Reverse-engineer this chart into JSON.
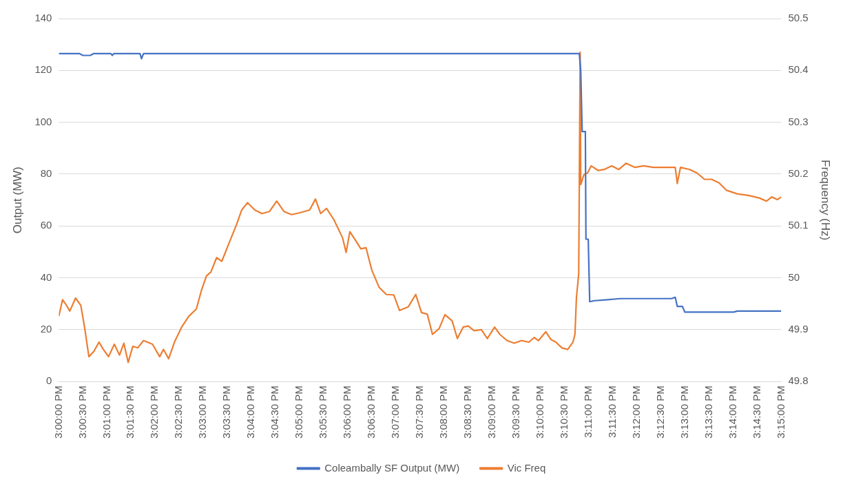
{
  "chart_data": {
    "type": "line",
    "ylabel": "Output (MW)",
    "y2label": "Frequency (Hz)",
    "xlim": [
      15,
      15.25
    ],
    "xticks": [
      {
        "value": 15,
        "label": "3:00:00 PM"
      },
      {
        "value": 15.008333,
        "label": "3:00:30 PM"
      },
      {
        "value": 15.016667,
        "label": "3:01:00 PM"
      },
      {
        "value": 15.025,
        "label": "3:01:30 PM"
      },
      {
        "value": 15.033333,
        "label": "3:02:00 PM"
      },
      {
        "value": 15.041667,
        "label": "3:02:30 PM"
      },
      {
        "value": 15.05,
        "label": "3:03:00 PM"
      },
      {
        "value": 15.058333,
        "label": "3:03:30 PM"
      },
      {
        "value": 15.066667,
        "label": "3:04:00 PM"
      },
      {
        "value": 15.075,
        "label": "3:04:30 PM"
      },
      {
        "value": 15.083333,
        "label": "3:05:00 PM"
      },
      {
        "value": 15.091667,
        "label": "3:05:30 PM"
      },
      {
        "value": 15.1,
        "label": "3:06:00 PM"
      },
      {
        "value": 15.108333,
        "label": "3:06:30 PM"
      },
      {
        "value": 15.116667,
        "label": "3:07:00 PM"
      },
      {
        "value": 15.125,
        "label": "3:07:30 PM"
      },
      {
        "value": 15.133333,
        "label": "3:08:00 PM"
      },
      {
        "value": 15.141667,
        "label": "3:08:30 PM"
      },
      {
        "value": 15.15,
        "label": "3:09:00 PM"
      },
      {
        "value": 15.158333,
        "label": "3:09:30 PM"
      },
      {
        "value": 15.166667,
        "label": "3:10:00 PM"
      },
      {
        "value": 15.175,
        "label": "3:10:30 PM"
      },
      {
        "value": 15.183333,
        "label": "3:11:00 PM"
      },
      {
        "value": 15.191667,
        "label": "3:11:30 PM"
      },
      {
        "value": 15.2,
        "label": "3:12:00 PM"
      },
      {
        "value": 15.208333,
        "label": "3:12:30 PM"
      },
      {
        "value": 15.216667,
        "label": "3:13:00 PM"
      },
      {
        "value": 15.225,
        "label": "3:13:30 PM"
      },
      {
        "value": 15.233333,
        "label": "3:14:00 PM"
      },
      {
        "value": 15.241667,
        "label": "3:14:30 PM"
      },
      {
        "value": 15.25,
        "label": "3:15:00 PM"
      }
    ],
    "ylim": [
      0,
      140
    ],
    "yticks": [
      0,
      20,
      40,
      60,
      80,
      100,
      120,
      140
    ],
    "y2lim": [
      49.8,
      50.5
    ],
    "y2ticks": [
      49.8,
      49.9,
      50,
      50.1,
      50.2,
      50.3,
      50.4,
      50.5
    ],
    "grid": "y",
    "legend": "bottom",
    "series": [
      {
        "name": "Coleambally SF Output (MW)",
        "color": "#4472c4",
        "x": [
          15,
          15.0071,
          15.0083,
          15.0109,
          15.0121,
          15.018,
          15.0185,
          15.019,
          15.0281,
          15.0286,
          15.0293,
          15.1801,
          15.1806,
          15.1811,
          15.1822,
          15.1824,
          15.1832,
          15.1837,
          15.1854,
          15.1892,
          15.1943,
          15.212,
          15.2133,
          15.214,
          15.2158,
          15.2166,
          15.2335,
          15.2348,
          15.25
        ],
        "values": [
          126.5,
          126.5,
          125.8,
          125.8,
          126.5,
          126.5,
          125.8,
          126.5,
          126.5,
          124.5,
          126.5,
          126.5,
          120,
          96.4,
          96.4,
          54.9,
          54.9,
          30.8,
          31.2,
          31.5,
          32,
          32,
          32.5,
          29,
          29,
          26.8,
          26.8,
          27.2,
          27.2
        ]
      },
      {
        "name": "Vic Freq",
        "color": "#ed7d31",
        "axis": "y2",
        "x": [
          15,
          15.0013,
          15.0023,
          15.0038,
          15.0058,
          15.0076,
          15.0089,
          15.0104,
          15.0121,
          15.0139,
          15.0154,
          15.0172,
          15.0192,
          15.021,
          15.0225,
          15.024,
          15.0256,
          15.0273,
          15.0293,
          15.0324,
          15.0349,
          15.0362,
          15.038,
          15.04,
          15.0425,
          15.045,
          15.0476,
          15.0493,
          15.0511,
          15.0526,
          15.0546,
          15.0564,
          15.0589,
          15.0615,
          15.0633,
          15.0653,
          15.0678,
          15.0703,
          15.0729,
          15.0754,
          15.0779,
          15.0805,
          15.083,
          15.0868,
          15.0888,
          15.0906,
          15.0926,
          15.0951,
          15.0982,
          15.0994,
          15.1007,
          15.1027,
          15.1045,
          15.1063,
          15.1083,
          15.1108,
          15.1133,
          15.1159,
          15.1179,
          15.1209,
          15.1235,
          15.1255,
          15.1275,
          15.1293,
          15.1316,
          15.1336,
          15.1361,
          15.1379,
          15.1399,
          15.1417,
          15.1437,
          15.1462,
          15.1483,
          15.1508,
          15.1526,
          15.1551,
          15.1576,
          15.1601,
          15.1627,
          15.1645,
          15.166,
          15.1685,
          15.1703,
          15.172,
          15.1741,
          15.1761,
          15.1779,
          15.1786,
          15.1791,
          15.1799,
          15.1804,
          15.1806,
          15.1817,
          15.1829,
          15.1842,
          15.1867,
          15.1887,
          15.1913,
          15.1938,
          15.1963,
          15.1994,
          15.2024,
          15.2057,
          15.2133,
          15.214,
          15.2151,
          15.2183,
          15.2209,
          15.2234,
          15.2259,
          15.2285,
          15.231,
          15.2348,
          15.2386,
          15.2424,
          15.2449,
          15.2467,
          15.2487,
          15.25
        ],
        "values": [
          49.926,
          49.958,
          49.95,
          49.936,
          49.961,
          49.947,
          49.905,
          49.848,
          49.858,
          49.876,
          49.862,
          49.848,
          49.872,
          49.851,
          49.874,
          49.837,
          49.868,
          49.865,
          49.879,
          49.872,
          49.848,
          49.862,
          49.844,
          49.876,
          49.905,
          49.926,
          49.94,
          49.975,
          50.004,
          50.011,
          50.039,
          50.032,
          50.067,
          50.103,
          50.131,
          50.145,
          50.131,
          50.124,
          50.128,
          50.148,
          50.128,
          50.122,
          50.125,
          50.131,
          50.152,
          50.124,
          50.134,
          50.113,
          50.077,
          50.049,
          50.089,
          50.072,
          50.056,
          50.058,
          50.015,
          49.982,
          49.968,
          49.967,
          49.937,
          49.944,
          49.968,
          49.933,
          49.93,
          49.891,
          49.902,
          49.929,
          49.917,
          49.883,
          49.905,
          49.907,
          49.898,
          49.9,
          49.883,
          49.905,
          49.891,
          49.879,
          49.874,
          49.879,
          49.876,
          49.885,
          49.879,
          49.896,
          49.881,
          49.876,
          49.865,
          49.862,
          49.876,
          49.891,
          49.961,
          50.008,
          50.435,
          50.18,
          50.199,
          50.202,
          50.216,
          50.207,
          50.209,
          50.216,
          50.209,
          50.221,
          50.213,
          50.216,
          50.213,
          50.213,
          50.182,
          50.213,
          50.209,
          50.202,
          50.19,
          50.19,
          50.183,
          50.169,
          50.162,
          50.159,
          50.154,
          50.148,
          50.156,
          50.151,
          50.156
        ]
      }
    ]
  }
}
